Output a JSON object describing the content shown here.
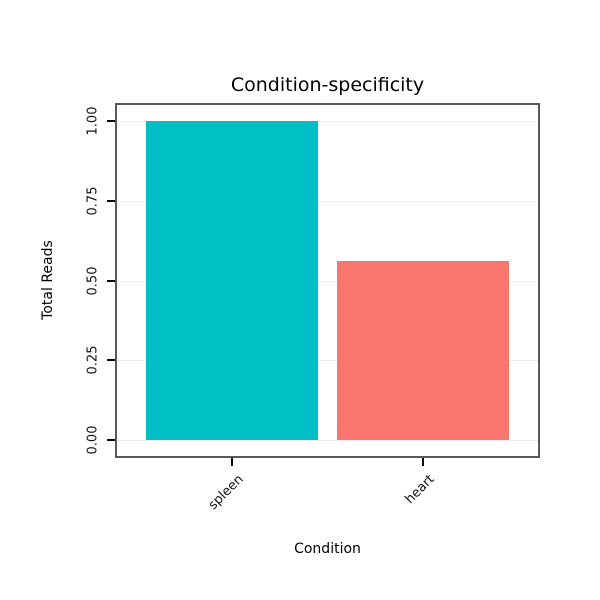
{
  "chart_data": {
    "type": "bar",
    "title": "Condition-specificity",
    "xlabel": "Condition",
    "ylabel": "Total Reads",
    "categories": [
      "spleen",
      "heart"
    ],
    "values": [
      1.0,
      0.56
    ],
    "colors": [
      "#00BFC4",
      "#F8766D"
    ],
    "yticks": [
      0,
      0.25,
      0.5,
      0.75,
      1
    ],
    "ytick_labels": [
      "0.00",
      "0.25",
      "0.50",
      "0.75",
      "1.00"
    ],
    "ylim": [
      0,
      1.05
    ],
    "grid": true,
    "legend": "none",
    "panel_border_color": "#595959",
    "background": "#ffffff"
  }
}
